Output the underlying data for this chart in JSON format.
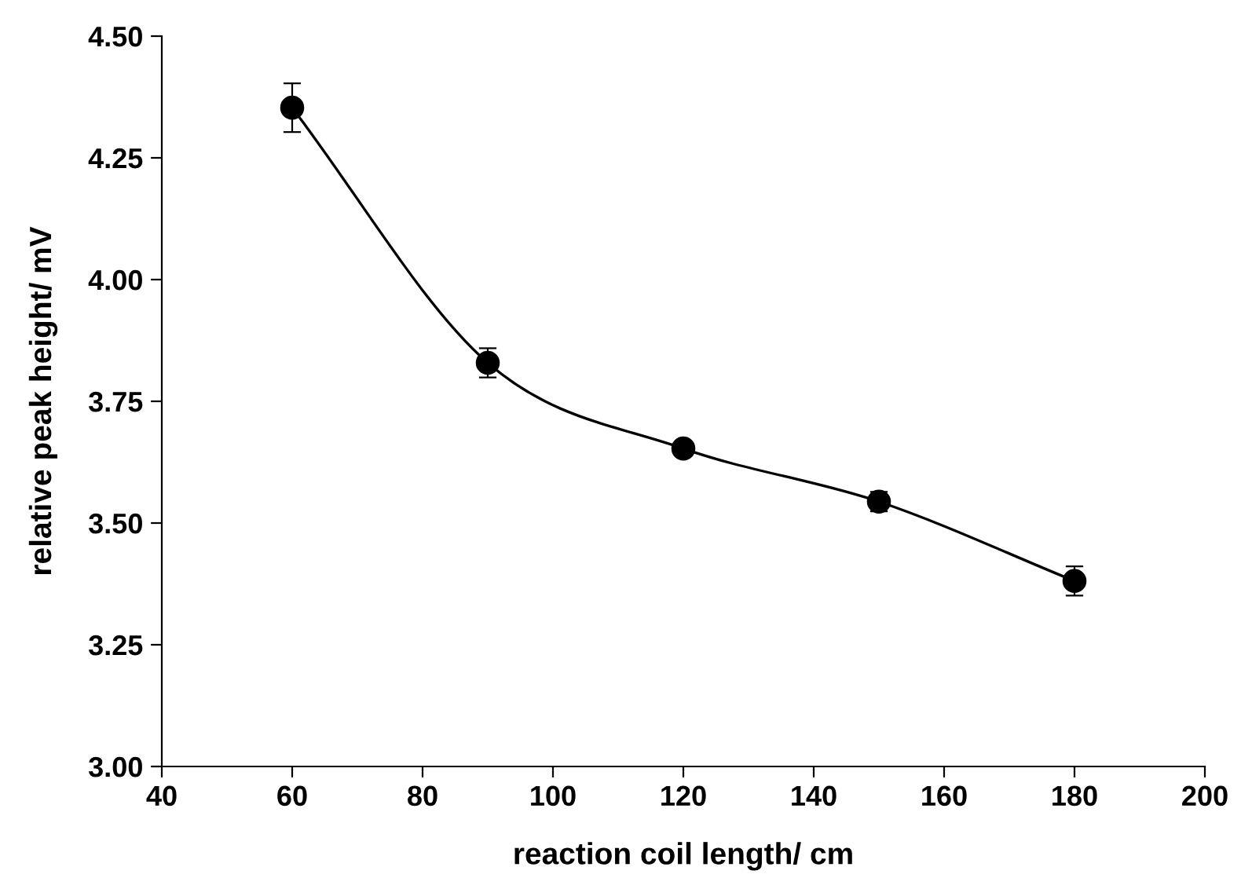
{
  "chart_data": {
    "type": "line",
    "xlabel": "reaction coil length/ cm",
    "ylabel": "relative peak height/ mV",
    "x": [
      60,
      90,
      120,
      150,
      180
    ],
    "series": [
      {
        "color": "#000000",
        "values": [
          4.353,
          3.829,
          3.653,
          3.544,
          3.381
        ],
        "errors": [
          0.05,
          0.03,
          null,
          0.02,
          0.03
        ]
      }
    ],
    "xlim": [
      40,
      200
    ],
    "xticks": [
      40,
      60,
      80,
      100,
      120,
      140,
      160,
      180,
      200
    ],
    "ylim": [
      3.0,
      4.5
    ],
    "yticks": [
      {
        "value": 3.0,
        "label": "3.00"
      },
      {
        "value": 3.25,
        "label": "3.25"
      },
      {
        "value": 3.5,
        "label": "3.50"
      },
      {
        "value": 3.75,
        "label": "3.75"
      },
      {
        "value": 4.0,
        "label": "4.00"
      },
      {
        "value": 4.25,
        "label": "4.25"
      },
      {
        "value": 4.5,
        "label": "4.50"
      }
    ],
    "marker": "circle",
    "line_style": "solid",
    "grid": false,
    "legend": false
  }
}
